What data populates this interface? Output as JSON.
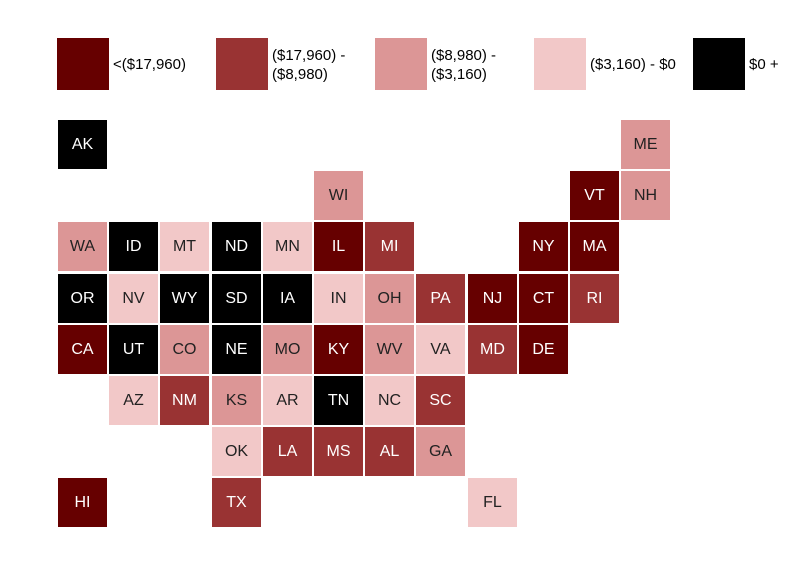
{
  "colors": {
    "c0": "#660000",
    "c1": "#993333",
    "c2": "#dc9696",
    "c3": "#f2c8c8",
    "c4": "#000000"
  },
  "legend": [
    {
      "label": "<($17,960)",
      "color": "c0"
    },
    {
      "label": "($17,960) -\n($8,980)",
      "color": "c1"
    },
    {
      "label": "($8,980) -\n($3,160)",
      "color": "c2"
    },
    {
      "label": "($3,160) - $0",
      "color": "c3"
    },
    {
      "label": "$0 +",
      "color": "c4"
    }
  ],
  "states": [
    {
      "abbr": "AK",
      "col": 0,
      "row": 0,
      "bin": 4
    },
    {
      "abbr": "ME",
      "col": 11,
      "row": 0,
      "bin": 2
    },
    {
      "abbr": "WI",
      "col": 5,
      "row": 1,
      "bin": 2
    },
    {
      "abbr": "VT",
      "col": 10,
      "row": 1,
      "bin": 0
    },
    {
      "abbr": "NH",
      "col": 11,
      "row": 1,
      "bin": 2
    },
    {
      "abbr": "WA",
      "col": 0,
      "row": 2,
      "bin": 2
    },
    {
      "abbr": "ID",
      "col": 1,
      "row": 2,
      "bin": 4
    },
    {
      "abbr": "MT",
      "col": 2,
      "row": 2,
      "bin": 3
    },
    {
      "abbr": "ND",
      "col": 3,
      "row": 2,
      "bin": 4
    },
    {
      "abbr": "MN",
      "col": 4,
      "row": 2,
      "bin": 3
    },
    {
      "abbr": "IL",
      "col": 5,
      "row": 2,
      "bin": 0
    },
    {
      "abbr": "MI",
      "col": 6,
      "row": 2,
      "bin": 1
    },
    {
      "abbr": "NY",
      "col": 9,
      "row": 2,
      "bin": 0
    },
    {
      "abbr": "MA",
      "col": 10,
      "row": 2,
      "bin": 0
    },
    {
      "abbr": "OR",
      "col": 0,
      "row": 3,
      "bin": 4
    },
    {
      "abbr": "NV",
      "col": 1,
      "row": 3,
      "bin": 3
    },
    {
      "abbr": "WY",
      "col": 2,
      "row": 3,
      "bin": 4
    },
    {
      "abbr": "SD",
      "col": 3,
      "row": 3,
      "bin": 4
    },
    {
      "abbr": "IA",
      "col": 4,
      "row": 3,
      "bin": 4
    },
    {
      "abbr": "IN",
      "col": 5,
      "row": 3,
      "bin": 3
    },
    {
      "abbr": "OH",
      "col": 6,
      "row": 3,
      "bin": 2
    },
    {
      "abbr": "PA",
      "col": 7,
      "row": 3,
      "bin": 1
    },
    {
      "abbr": "NJ",
      "col": 8,
      "row": 3,
      "bin": 0
    },
    {
      "abbr": "CT",
      "col": 9,
      "row": 3,
      "bin": 0
    },
    {
      "abbr": "RI",
      "col": 10,
      "row": 3,
      "bin": 1
    },
    {
      "abbr": "CA",
      "col": 0,
      "row": 4,
      "bin": 0
    },
    {
      "abbr": "UT",
      "col": 1,
      "row": 4,
      "bin": 4
    },
    {
      "abbr": "CO",
      "col": 2,
      "row": 4,
      "bin": 2
    },
    {
      "abbr": "NE",
      "col": 3,
      "row": 4,
      "bin": 4
    },
    {
      "abbr": "MO",
      "col": 4,
      "row": 4,
      "bin": 2
    },
    {
      "abbr": "KY",
      "col": 5,
      "row": 4,
      "bin": 0
    },
    {
      "abbr": "WV",
      "col": 6,
      "row": 4,
      "bin": 2
    },
    {
      "abbr": "VA",
      "col": 7,
      "row": 4,
      "bin": 3
    },
    {
      "abbr": "MD",
      "col": 8,
      "row": 4,
      "bin": 1
    },
    {
      "abbr": "DE",
      "col": 9,
      "row": 4,
      "bin": 0
    },
    {
      "abbr": "AZ",
      "col": 1,
      "row": 5,
      "bin": 3
    },
    {
      "abbr": "NM",
      "col": 2,
      "row": 5,
      "bin": 1
    },
    {
      "abbr": "KS",
      "col": 3,
      "row": 5,
      "bin": 2
    },
    {
      "abbr": "AR",
      "col": 4,
      "row": 5,
      "bin": 3
    },
    {
      "abbr": "TN",
      "col": 5,
      "row": 5,
      "bin": 4
    },
    {
      "abbr": "NC",
      "col": 6,
      "row": 5,
      "bin": 3
    },
    {
      "abbr": "SC",
      "col": 7,
      "row": 5,
      "bin": 1
    },
    {
      "abbr": "OK",
      "col": 3,
      "row": 6,
      "bin": 3
    },
    {
      "abbr": "LA",
      "col": 4,
      "row": 6,
      "bin": 1
    },
    {
      "abbr": "MS",
      "col": 5,
      "row": 6,
      "bin": 1
    },
    {
      "abbr": "AL",
      "col": 6,
      "row": 6,
      "bin": 1
    },
    {
      "abbr": "GA",
      "col": 7,
      "row": 6,
      "bin": 2
    },
    {
      "abbr": "HI",
      "col": 0,
      "row": 7,
      "bin": 0
    },
    {
      "abbr": "TX",
      "col": 3,
      "row": 7,
      "bin": 1
    },
    {
      "abbr": "FL",
      "col": 8,
      "row": 7,
      "bin": 3
    }
  ]
}
